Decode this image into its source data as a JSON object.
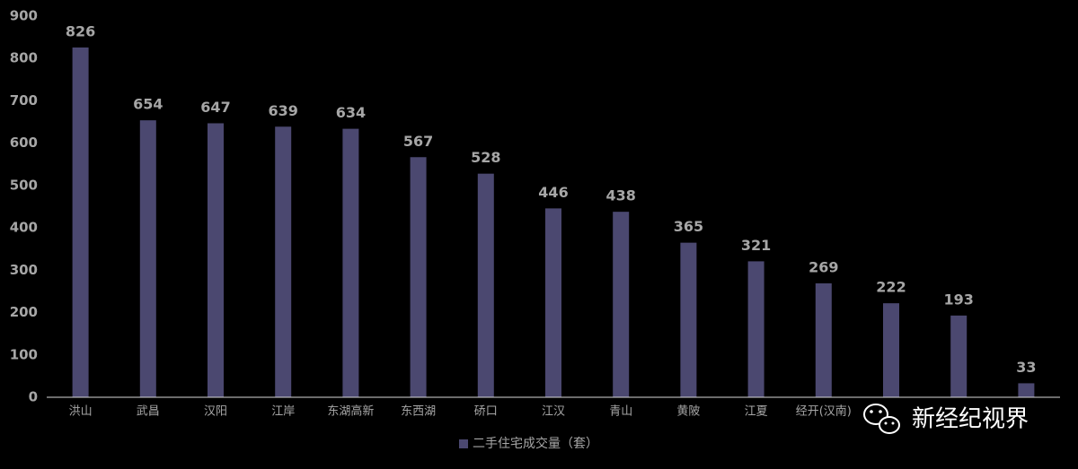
{
  "chart_data": {
    "type": "bar",
    "categories": [
      "洪山",
      "武昌",
      "汉阳",
      "江岸",
      "东湖高新",
      "东西湖",
      "硚口",
      "江汉",
      "青山",
      "黄陂",
      "江夏",
      "经开(汉南)",
      null,
      null,
      null
    ],
    "series": [
      {
        "name": "二手住宅成交量（套）",
        "color": "#4b4870",
        "values": [
          826,
          654,
          647,
          639,
          634,
          567,
          528,
          446,
          438,
          365,
          321,
          269,
          222,
          193,
          33
        ]
      }
    ],
    "ylim": [
      0,
      900
    ],
    "yticks": [
      0,
      100,
      200,
      300,
      400,
      500,
      600,
      700,
      800,
      900
    ],
    "legend": "bottom"
  },
  "watermark": "新经纪视界"
}
